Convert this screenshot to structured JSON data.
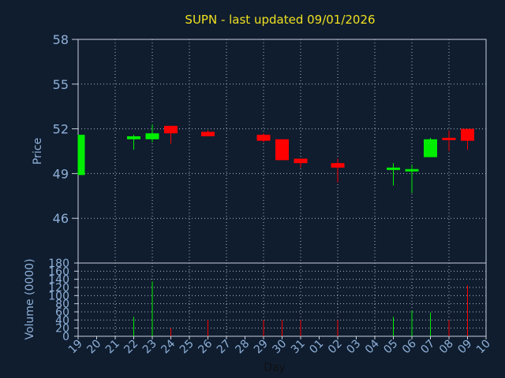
{
  "title": "SUPN - last updated 09/01/2026",
  "colors": {
    "background": "#0f1d2f",
    "panel": "#0f1d2f",
    "grid": "#b0b8c4",
    "axis": "#c8d0dc",
    "text": "#8fb0d8",
    "title": "#f0e020",
    "up": "#00ee00",
    "down": "#ff0000",
    "day_label": "#111111"
  },
  "chart_data": [
    {
      "type": "candlestick",
      "ylabel": "Price",
      "ylim": [
        43,
        58
      ],
      "yticks": [
        "58",
        "55",
        "52",
        "49",
        "46"
      ],
      "ytick_values": [
        58,
        55,
        52,
        49,
        46
      ],
      "grid": true,
      "x_categories": [
        "19",
        "20",
        "21",
        "22",
        "23",
        "24",
        "25",
        "26",
        "27",
        "28",
        "29",
        "30",
        "31",
        "01",
        "02",
        "03",
        "04",
        "05",
        "06",
        "07",
        "08",
        "09",
        "10"
      ],
      "candles": [
        {
          "x": "19",
          "open": 48.9,
          "close": 51.6,
          "high": 51.6,
          "low": 48.9
        },
        {
          "x": "22",
          "open": 51.3,
          "close": 51.5,
          "high": 51.6,
          "low": 50.6
        },
        {
          "x": "23",
          "open": 51.3,
          "close": 51.7,
          "high": 52.3,
          "low": 51.1
        },
        {
          "x": "24",
          "open": 52.2,
          "close": 51.7,
          "high": 52.2,
          "low": 51.0
        },
        {
          "x": "26",
          "open": 51.8,
          "close": 51.5,
          "high": 51.9,
          "low": 51.5
        },
        {
          "x": "29",
          "open": 51.6,
          "close": 51.2,
          "high": 51.7,
          "low": 51.1
        },
        {
          "x": "30",
          "open": 51.3,
          "close": 49.9,
          "high": 51.3,
          "low": 49.9
        },
        {
          "x": "31",
          "open": 50.0,
          "close": 49.7,
          "high": 50.0,
          "low": 49.4
        },
        {
          "x": "02",
          "open": 49.7,
          "close": 49.4,
          "high": 50.0,
          "low": 48.4
        },
        {
          "x": "05",
          "open": 49.3,
          "close": 49.4,
          "high": 49.7,
          "low": 48.2
        },
        {
          "x": "06",
          "open": 49.2,
          "close": 49.3,
          "high": 49.6,
          "low": 47.7
        },
        {
          "x": "07",
          "open": 50.1,
          "close": 51.3,
          "high": 51.4,
          "low": 50.1
        },
        {
          "x": "08",
          "open": 51.4,
          "close": 51.3,
          "high": 51.9,
          "low": 50.5
        },
        {
          "x": "09",
          "open": 52.0,
          "close": 51.2,
          "high": 52.0,
          "low": 50.6
        }
      ]
    },
    {
      "type": "bar",
      "ylabel": "Volume (0000)",
      "xlabel": "Day",
      "ylim": [
        0,
        180
      ],
      "yticks": [
        "180",
        "160",
        "140",
        "120",
        "100",
        "80",
        "60",
        "40",
        "20",
        "0"
      ],
      "ytick_values": [
        180,
        160,
        140,
        120,
        100,
        80,
        60,
        40,
        20,
        0
      ],
      "categories": [
        "19",
        "20",
        "21",
        "22",
        "23",
        "24",
        "25",
        "26",
        "27",
        "28",
        "29",
        "30",
        "31",
        "01",
        "02",
        "03",
        "04",
        "05",
        "06",
        "07",
        "08",
        "09",
        "10"
      ],
      "volumes": [
        {
          "x": "19",
          "value": 0,
          "dir": "up"
        },
        {
          "x": "22",
          "value": 48,
          "dir": "up"
        },
        {
          "x": "23",
          "value": 135,
          "dir": "up"
        },
        {
          "x": "24",
          "value": 20,
          "dir": "down"
        },
        {
          "x": "26",
          "value": 40,
          "dir": "down"
        },
        {
          "x": "29",
          "value": 40,
          "dir": "down"
        },
        {
          "x": "30",
          "value": 40,
          "dir": "down"
        },
        {
          "x": "31",
          "value": 40,
          "dir": "down"
        },
        {
          "x": "02",
          "value": 40,
          "dir": "down"
        },
        {
          "x": "05",
          "value": 48,
          "dir": "up"
        },
        {
          "x": "06",
          "value": 63,
          "dir": "up"
        },
        {
          "x": "07",
          "value": 58,
          "dir": "up"
        },
        {
          "x": "08",
          "value": 40,
          "dir": "down"
        },
        {
          "x": "09",
          "value": 125,
          "dir": "down"
        }
      ]
    }
  ]
}
